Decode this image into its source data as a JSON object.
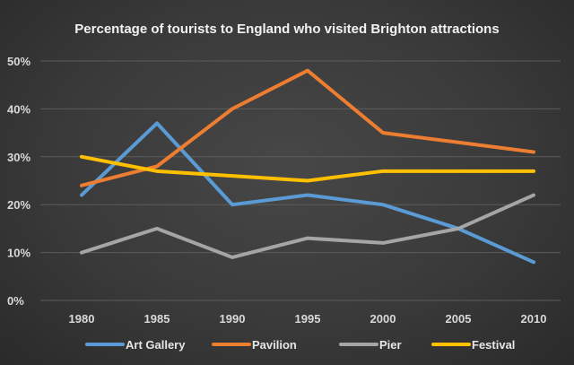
{
  "chart_data": {
    "type": "line",
    "title": "Percentage of tourists to England who visited Brighton attractions",
    "xlabel": "",
    "ylabel": "",
    "x": [
      "1980",
      "1985",
      "1990",
      "1995",
      "2000",
      "2005",
      "2010"
    ],
    "ylim": [
      0,
      50
    ],
    "yticks": [
      "0%",
      "10%",
      "20%",
      "30%",
      "40%",
      "50%"
    ],
    "grid": true,
    "legend_position": "bottom",
    "series": [
      {
        "name": "Art Gallery",
        "color": "#5b9bd5",
        "values": [
          22,
          37,
          20,
          22,
          20,
          15,
          8
        ]
      },
      {
        "name": "Pavilion",
        "color": "#ed7d31",
        "values": [
          24,
          28,
          40,
          48,
          35,
          33,
          31
        ]
      },
      {
        "name": "Pier",
        "color": "#a5a5a5",
        "values": [
          10,
          15,
          9,
          13,
          12,
          15,
          22
        ]
      },
      {
        "name": "Festival",
        "color": "#ffc000",
        "values": [
          30,
          27,
          26,
          25,
          27,
          27,
          27
        ]
      }
    ]
  }
}
